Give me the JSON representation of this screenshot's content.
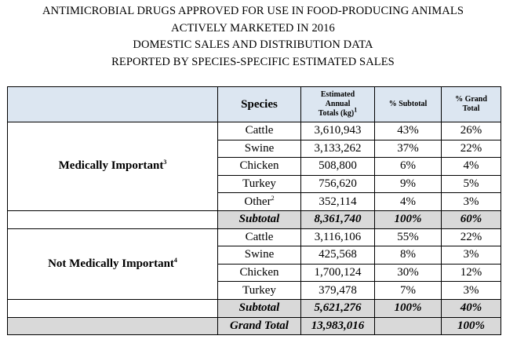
{
  "title_lines": [
    "ANTIMICROBIAL DRUGS APPROVED FOR USE IN FOOD-PRODUCING ANIMALS",
    "ACTIVELY MARKETED IN 2016",
    "DOMESTIC SALES AND DISTRIBUTION DATA",
    "REPORTED BY SPECIES-SPECIFIC ESTIMATED SALES"
  ],
  "headers": {
    "species": "Species",
    "totals_line1": "Estimated",
    "totals_line2": "Annual",
    "totals_line3": "Totals (kg)",
    "totals_sup": "1",
    "pct_subtotal": "% Subtotal",
    "pct_grand_line1": "% Grand",
    "pct_grand_line2": "Total"
  },
  "groups": [
    {
      "label": "Medically Important",
      "label_sup": "3",
      "rows": [
        {
          "species": "Cattle",
          "species_sup": "",
          "total": "3,610,943",
          "pct_subtotal": "43%",
          "pct_grand": "26%"
        },
        {
          "species": "Swine",
          "species_sup": "",
          "total": "3,133,262",
          "pct_subtotal": "37%",
          "pct_grand": "22%"
        },
        {
          "species": "Chicken",
          "species_sup": "",
          "total": "508,800",
          "pct_subtotal": "6%",
          "pct_grand": "4%"
        },
        {
          "species": "Turkey",
          "species_sup": "",
          "total": "756,620",
          "pct_subtotal": "9%",
          "pct_grand": "5%"
        },
        {
          "species": "Other",
          "species_sup": "2",
          "total": "352,114",
          "pct_subtotal": "4%",
          "pct_grand": "3%"
        }
      ],
      "subtotal": {
        "label": "Subtotal",
        "total": "8,361,740",
        "pct_subtotal": "100%",
        "pct_grand": "60%"
      }
    },
    {
      "label": "Not Medically Important",
      "label_sup": "4",
      "rows": [
        {
          "species": "Cattle",
          "species_sup": "",
          "total": "3,116,106",
          "pct_subtotal": "55%",
          "pct_grand": "22%"
        },
        {
          "species": "Swine",
          "species_sup": "",
          "total": "425,568",
          "pct_subtotal": "8%",
          "pct_grand": "3%"
        },
        {
          "species": "Chicken",
          "species_sup": "",
          "total": "1,700,124",
          "pct_subtotal": "30%",
          "pct_grand": "12%"
        },
        {
          "species": "Turkey",
          "species_sup": "",
          "total": "379,478",
          "pct_subtotal": "7%",
          "pct_grand": "3%"
        }
      ],
      "subtotal": {
        "label": "Subtotal",
        "total": "5,621,276",
        "pct_subtotal": "100%",
        "pct_grand": "40%"
      }
    }
  ],
  "grand_total": {
    "label": "Grand Total",
    "total": "13,983,016",
    "pct_subtotal": "",
    "pct_grand": "100%"
  },
  "colors": {
    "header_bg": "#dce6f1",
    "subtotal_bg": "#d9d9d9"
  }
}
